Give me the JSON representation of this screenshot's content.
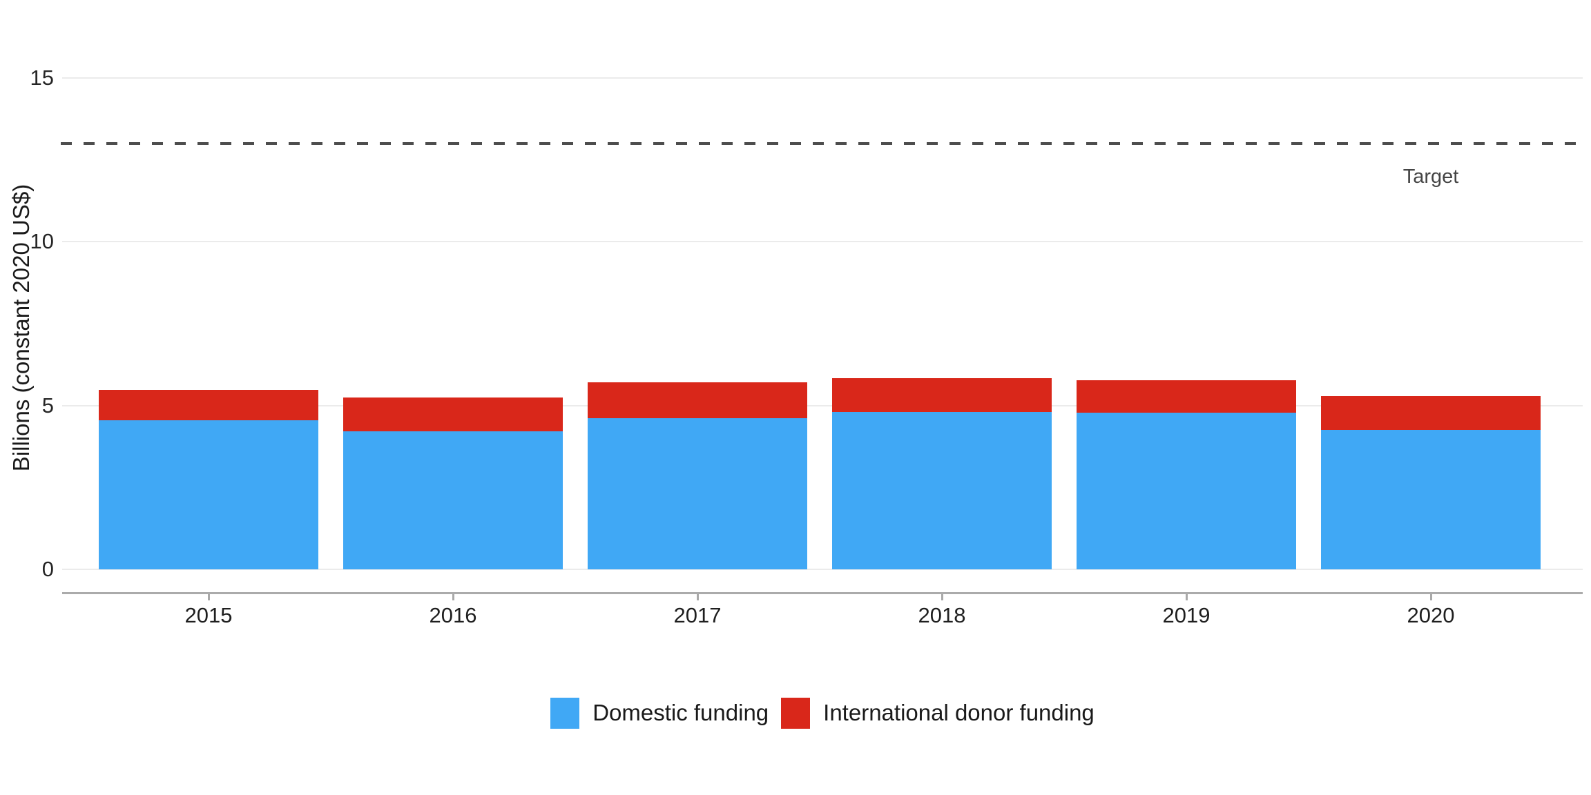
{
  "chart_data": {
    "type": "bar",
    "stacked": true,
    "title": "",
    "categories": [
      "2015",
      "2016",
      "2017",
      "2018",
      "2019",
      "2020"
    ],
    "series": [
      {
        "name": "Domestic funding",
        "color": "#40a8f5",
        "values": [
          4.55,
          4.22,
          4.62,
          4.81,
          4.79,
          4.26
        ]
      },
      {
        "name": "International donor funding",
        "color": "#d9271a",
        "values": [
          0.92,
          1.03,
          1.08,
          1.02,
          0.99,
          1.02
        ]
      }
    ],
    "totals": [
      5.47,
      5.25,
      5.7,
      5.83,
      5.78,
      5.28
    ],
    "xlabel": "",
    "ylabel": "Billions (constant 2020 US$)",
    "yticks": [
      0,
      5,
      10,
      15
    ],
    "ylim": [
      0,
      15.5
    ],
    "grid": "horizontal-major-only",
    "legend_position": "bottom-center",
    "target_line": {
      "value": 13,
      "label": "Target",
      "style": "dashed",
      "color": "#4d4d4d"
    }
  },
  "colors": {
    "background": "#ffffff",
    "gridline": "#ebebeb",
    "axis_line": "#ababab",
    "tick_mark": "#a9a9a9",
    "tick_label": "#262626",
    "text": "#1a1a1a"
  }
}
